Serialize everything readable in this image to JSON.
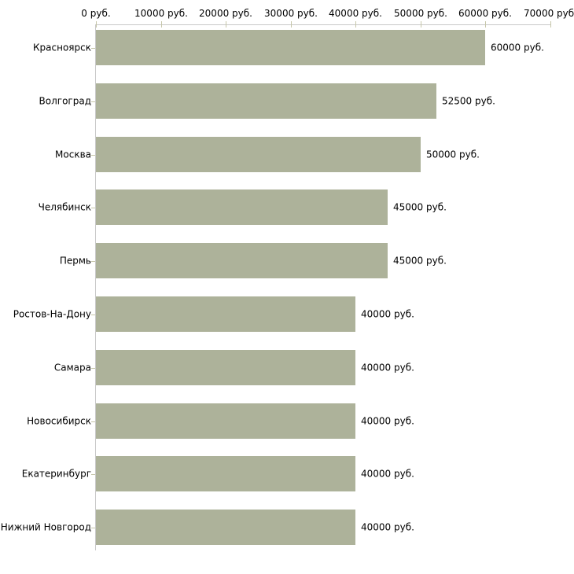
{
  "chart_data": {
    "type": "bar",
    "orientation": "horizontal",
    "title": "",
    "xlabel": "",
    "ylabel": "",
    "unit": "руб.",
    "xlim": [
      0,
      70000
    ],
    "grid": false,
    "legend": false,
    "x_ticks": [
      0,
      10000,
      20000,
      30000,
      40000,
      50000,
      60000,
      70000
    ],
    "x_tick_labels": [
      "0 руб.",
      "10000 руб.",
      "20000 руб.",
      "30000 руб.",
      "40000 руб.",
      "50000 руб.",
      "60000 руб.",
      "70000 руб."
    ],
    "categories": [
      "Красноярск",
      "Волгоград",
      "Москва",
      "Челябинск",
      "Пермь",
      "Ростов-На-Дону",
      "Самара",
      "Новосибирск",
      "Екатеринбург",
      "Нижний Новгород"
    ],
    "values": [
      60000,
      52500,
      50000,
      45000,
      45000,
      40000,
      40000,
      40000,
      40000,
      40000
    ],
    "value_labels": [
      "60000 руб.",
      "52500 руб.",
      "50000 руб.",
      "45000 руб.",
      "45000 руб.",
      "40000 руб.",
      "40000 руб.",
      "40000 руб.",
      "40000 руб.",
      "40000 руб."
    ],
    "colors": {
      "bar": "#adb29a",
      "axis_line": "#c9c9c9",
      "tick": "#c6c6a9",
      "text": "#000000",
      "background": "#ffffff"
    }
  }
}
